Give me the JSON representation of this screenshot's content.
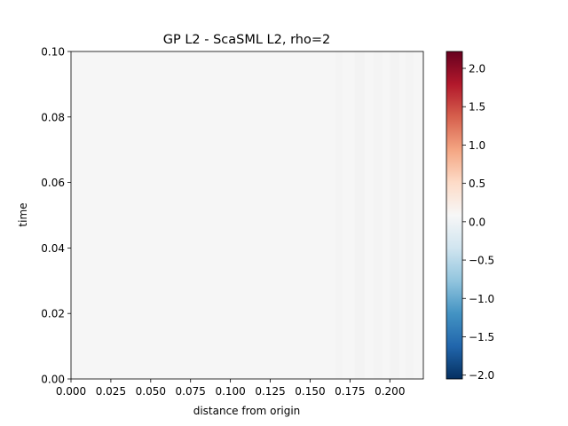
{
  "chart_data": {
    "type": "heatmap",
    "title": "GP L2 - ScaSML L2, rho=2",
    "xlabel": "distance from origin",
    "ylabel": "time",
    "xlim": [
      0.0,
      0.221
    ],
    "ylim": [
      0.0,
      0.1
    ],
    "x_ticks": [
      "0.000",
      "0.025",
      "0.050",
      "0.075",
      "0.100",
      "0.125",
      "0.150",
      "0.175",
      "0.200"
    ],
    "x_tick_values": [
      0.0,
      0.025,
      0.05,
      0.075,
      0.1,
      0.125,
      0.15,
      0.175,
      0.2
    ],
    "y_ticks": [
      "0.00",
      "0.02",
      "0.04",
      "0.06",
      "0.08",
      "0.10"
    ],
    "y_tick_values": [
      0.0,
      0.02,
      0.04,
      0.06,
      0.08,
      0.1
    ],
    "colorbar": {
      "colormap": "RdBu_r",
      "vmin": -2.05,
      "vmax": 2.22,
      "ticks": [
        "−2.0",
        "−1.5",
        "−1.0",
        "−0.5",
        "0.0",
        "0.5",
        "1.0",
        "1.5",
        "2.0"
      ],
      "tick_values": [
        -2.0,
        -1.5,
        -1.0,
        -0.5,
        0.0,
        0.5,
        1.0,
        1.5,
        2.0
      ]
    },
    "field_value_approx": 0.0,
    "grid": false
  }
}
